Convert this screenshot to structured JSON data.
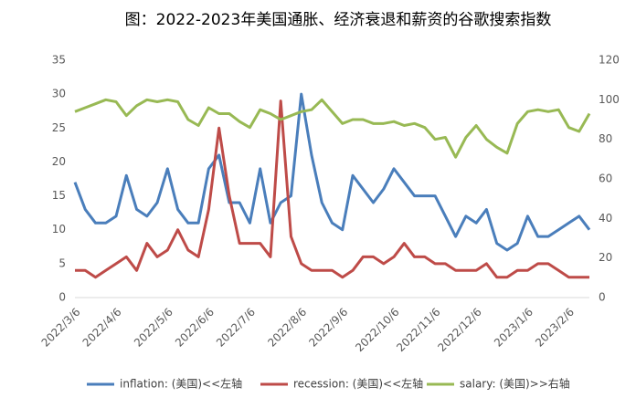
{
  "chart_data": {
    "type": "line",
    "title": "图：2022-2023年美国通胀、经济衰退和薪资的谷歌搜索指数",
    "categories": [
      "2022/3/6",
      null,
      null,
      null,
      "2022/4/6",
      null,
      null,
      null,
      null,
      "2022/5/6",
      null,
      null,
      null,
      "2022/6/6",
      null,
      null,
      null,
      "2022/7/6",
      null,
      null,
      null,
      null,
      "2022/8/6",
      null,
      null,
      null,
      "2022/9/6",
      null,
      null,
      null,
      null,
      "2022/10/6",
      null,
      null,
      null,
      "2022/11/6",
      null,
      null,
      null,
      "2022/12/6",
      null,
      null,
      null,
      null,
      "2023/1/6",
      null,
      null,
      null,
      "2023/2/6",
      null,
      null
    ],
    "series": [
      {
        "name": "inflation: (美国)<<左轴",
        "color": "#4a7ebb",
        "values": [
          17,
          13,
          11,
          11,
          12,
          18,
          13,
          12,
          14,
          19,
          13,
          11,
          11,
          19,
          21,
          14,
          14,
          11,
          19,
          11,
          14,
          15,
          30,
          21,
          14,
          11,
          10,
          18,
          16,
          14,
          16,
          19,
          17,
          15,
          15,
          15,
          12,
          9,
          12,
          11,
          13,
          8,
          7,
          8,
          12,
          9,
          9,
          10,
          11,
          12,
          10
        ]
      },
      {
        "name": "recession: (美国)<<左轴",
        "color": "#be4b48",
        "values": [
          4,
          4,
          3,
          4,
          5,
          6,
          4,
          8,
          6,
          7,
          10,
          7,
          6,
          13,
          25,
          15,
          8,
          8,
          8,
          6,
          29,
          9,
          5,
          4,
          4,
          4,
          3,
          4,
          6,
          6,
          5,
          6,
          8,
          6,
          6,
          5,
          5,
          4,
          4,
          4,
          5,
          3,
          3,
          4,
          4,
          5,
          5,
          4,
          3,
          3,
          3
        ]
      },
      {
        "name": "salary: (美国)>>右轴",
        "color": "#98b954",
        "axis": "y2",
        "values": [
          94,
          96,
          98,
          100,
          99,
          92,
          97,
          100,
          99,
          100,
          99,
          90,
          87,
          96,
          93,
          93,
          89,
          86,
          95,
          93,
          90,
          92,
          94,
          95,
          100,
          94,
          88,
          90,
          90,
          88,
          88,
          89,
          87,
          88,
          86,
          80,
          81,
          71,
          81,
          87,
          80,
          76,
          73,
          88,
          94,
          95,
          94,
          95,
          86,
          84,
          93
        ]
      }
    ],
    "ylim": [
      0,
      35
    ],
    "yticks": [
      0,
      5,
      10,
      15,
      20,
      25,
      30,
      35
    ],
    "y2lim": [
      0,
      120
    ],
    "y2ticks": [
      0,
      20,
      40,
      60,
      80,
      100,
      120
    ],
    "grid": false,
    "legend": "bottom"
  }
}
